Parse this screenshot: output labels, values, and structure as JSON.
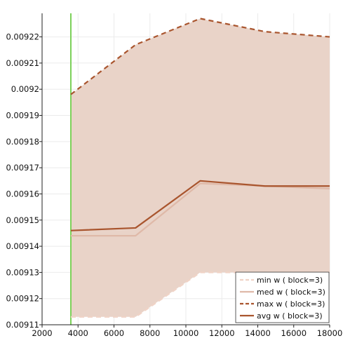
{
  "chart_data": {
    "type": "area",
    "title": "",
    "xlabel": "",
    "ylabel": "",
    "xlim": [
      2000,
      18000
    ],
    "ylim": [
      0.00911,
      0.009229
    ],
    "grid": true,
    "legend_position": "bottom-right",
    "x_ticks": [
      2000,
      4000,
      6000,
      8000,
      10000,
      12000,
      14000,
      16000,
      18000
    ],
    "x_tick_labels": [
      "2000",
      "4000",
      "6000",
      "8000",
      "10000",
      "12000",
      "14000",
      "16000",
      "18000"
    ],
    "y_ticks": [
      0.00911,
      0.00912,
      0.00913,
      0.00914,
      0.00915,
      0.00916,
      0.00917,
      0.00918,
      0.00919,
      0.0092,
      0.00921,
      0.00922
    ],
    "y_tick_labels": [
      "0.00911",
      "0.00912",
      "0.00913",
      "0.00914",
      "0.00915",
      "0.00916",
      "0.00917",
      "0.00918",
      "0.00919",
      "0.0092",
      "0.00921",
      "0.00922"
    ],
    "x": [
      3600,
      7200,
      10800,
      14400,
      18000
    ],
    "vertical_line": {
      "x": 3600,
      "color": "#7cd15a"
    },
    "fill": {
      "lower": "min w ( block=3)",
      "upper": "max w ( block=3)",
      "color": "#e9d3c8"
    },
    "series": [
      {
        "name": "min w ( block=3)",
        "values": [
          0.009113,
          0.009113,
          0.00913,
          0.00913,
          0.00913
        ],
        "color": "#f0d3c6",
        "dash": "dashed"
      },
      {
        "name": "med w ( block=3)",
        "values": [
          0.009144,
          0.009144,
          0.009164,
          0.009163,
          0.009162
        ],
        "color": "#dfb9a8",
        "dash": "solid"
      },
      {
        "name": "max w ( block=3)",
        "values": [
          0.009198,
          0.009217,
          0.009227,
          0.009222,
          0.00922
        ],
        "color": "#a9552e",
        "dash": "dashed"
      },
      {
        "name": "avg w ( block=3)",
        "values": [
          0.009146,
          0.009147,
          0.009165,
          0.009163,
          0.009163
        ],
        "color": "#a9552e",
        "dash": "solid"
      }
    ]
  }
}
